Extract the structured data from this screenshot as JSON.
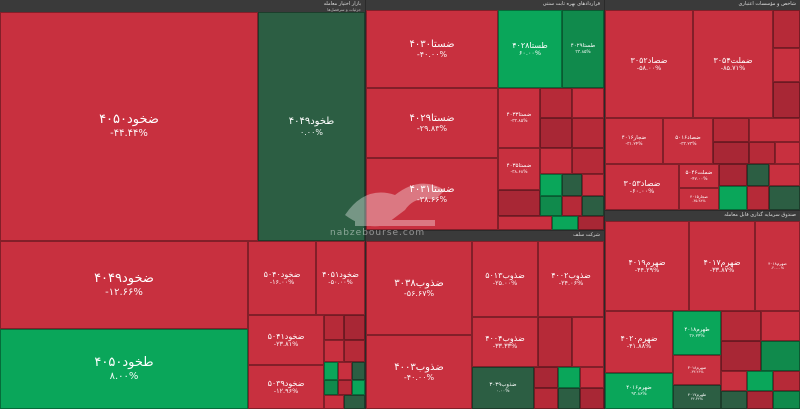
{
  "sections": {
    "s1": {
      "title": "بازار اختیار معامله",
      "subtitle": "جزئیات و سرفصل‌ها"
    },
    "s2": {
      "title": "قراردادهای بهره ثابت سنتی"
    },
    "s3": {
      "title": "شاخص و مؤسسات اعتباری"
    },
    "s4": {
      "title": "شرکت سلف"
    },
    "s5": {
      "title": "صندوق سرمایه گذاری قابل معامله"
    }
  },
  "tiles": [
    {
      "sym": "ضخود۴۰۵۰",
      "pct": "-۴۴.۴۴%"
    },
    {
      "sym": "طخود۴۰۴۹",
      "pct": "۰.۰۰%"
    },
    {
      "sym": "ضخود۴۰۴۹",
      "pct": "-۱۲.۶۶%"
    },
    {
      "sym": "ضخود۵۰۴۰",
      "pct": "-۱۶.۰۰%"
    },
    {
      "sym": "ضخود۴۰۵۱",
      "pct": "-۵۰.۰۰%"
    },
    {
      "sym": "طخود۴۰۵۰",
      "pct": "۸.۰۰%"
    },
    {
      "sym": "ضخود۵۰۴۱",
      "pct": "-۲۳.۸۱%"
    },
    {
      "sym": "ضخود۵۰۳۹",
      "pct": "-۱۲.۹۶%"
    },
    {
      "sym": "ضستا۴۰۳۰",
      "pct": "-۴۰.۰۰%"
    },
    {
      "sym": "طستا۴۰۲۸",
      "pct": "۶۰.۰۰%"
    },
    {
      "sym": "طستا۴۰۲۹",
      "pct": "۳۳.۸۵%"
    },
    {
      "sym": "ضستا۴۰۲۹",
      "pct": "-۲۹.۸۳%"
    },
    {
      "sym": "ضستا۴۰۳۳",
      "pct": "-۳۳.۸۵%"
    },
    {
      "sym": "ضستا۴۰۳۱",
      "pct": "-۳۸.۶۶%"
    },
    {
      "sym": "ضستا۴۰۳۵",
      "pct": "-۳۸.۶۸%"
    },
    {
      "sym": "ضصاد۳۰۵۲",
      "pct": "-۵۸.۰۰%"
    },
    {
      "sym": "ضملت۳۰۵۴",
      "pct": "-۸۵.۷۱%"
    },
    {
      "sym": "ضجار۴۰۱۶",
      "pct": "-۳۱.۲۴%"
    },
    {
      "sym": "ضصاد۳۰۵۳",
      "pct": "-۶۰.۰۰%"
    },
    {
      "sym": "ضصاد۵۰۱۶",
      "pct": "-۳۳.۲۳%"
    },
    {
      "sym": "ضملت۵۰۴۶",
      "pct": "-۴۷.۰۰%"
    },
    {
      "sym": "ضجار۴۰۱۵",
      "pct": "-۳۵.۳۸%"
    },
    {
      "sym": "ضذوب۳۰۳۸",
      "pct": "-۵۶.۶۷%"
    },
    {
      "sym": "ضذوب۵۰۱۳",
      "pct": "-۲۵.۰۰%"
    },
    {
      "sym": "ضذوب۴۰۰۲",
      "pct": "-۲۴.۰۶%"
    },
    {
      "sym": "ضذوب۴۰۰۴",
      "pct": "-۳۳.۳۳%"
    },
    {
      "sym": "ضذوب۴۰۰۳",
      "pct": "-۴۰.۰۰%"
    },
    {
      "sym": "ضذوب۳۰۳۹",
      "pct": "۰.۰۰%"
    },
    {
      "sym": "ضهرم۴۰۱۹",
      "pct": "-۴۴.۲۹%"
    },
    {
      "sym": "ضهرم۴۰۱۷",
      "pct": "-۳۳.۸۷%"
    },
    {
      "sym": "ضهرم۴۰۱۸",
      "pct": "-۴۰.۰۰%"
    },
    {
      "sym": "ضهرم۴۰۲۰",
      "pct": "-۴۱.۸۸%"
    },
    {
      "sym": "طهرم۴۰۱۸",
      "pct": "۳۶.۲۴%"
    },
    {
      "sym": "ضهرم۴۰۱۶",
      "pct": "۹۳.۸۶%"
    },
    {
      "sym": "ضهرم۳۰۱۸",
      "pct": "-۳۳.۲۶%"
    },
    {
      "sym": "طهرم۴۰۱۷",
      "pct": "۳۲.۳۲%"
    }
  ],
  "watermark": {
    "text": "nabzebourse.com",
    "brand": "بورس",
    "logo": "bull-logo-icon"
  }
}
